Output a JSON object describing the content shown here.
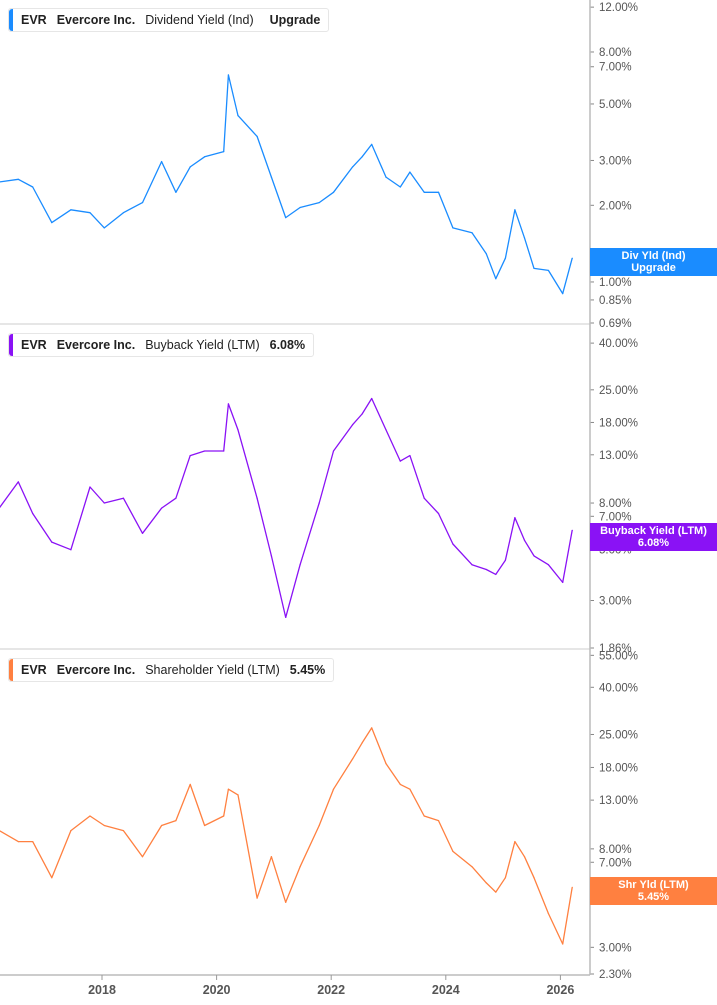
{
  "chart_data": [
    {
      "type": "line",
      "ticker": "EVR",
      "company": "Evercore Inc.",
      "metric": "Dividend Yield (Ind)",
      "value_label": "Upgrade",
      "tag_lines": [
        "Div Yld (Ind)",
        "Upgrade"
      ],
      "color": "#1a8cff",
      "yscale": "log",
      "ylim": [
        0.69,
        12.8
      ],
      "yticks": [
        "12.00%",
        "8.00%",
        "7.00%",
        "5.00%",
        "3.00%",
        "2.00%",
        "1.00%",
        "0.85%",
        "0.69%"
      ],
      "x": [
        "2016-03",
        "2016-07",
        "2016-10",
        "2017-02",
        "2017-06",
        "2017-10",
        "2018-01",
        "2018-05",
        "2018-09",
        "2019-01",
        "2019-04",
        "2019-07",
        "2019-10",
        "2020-02",
        "2020-03",
        "2020-05",
        "2020-09",
        "2020-12",
        "2021-03",
        "2021-06",
        "2021-10",
        "2022-01",
        "2022-05",
        "2022-07",
        "2022-09",
        "2022-12",
        "2023-03",
        "2023-05",
        "2023-08",
        "2023-11",
        "2024-02",
        "2024-06",
        "2024-09",
        "2024-11",
        "2025-01",
        "2025-03",
        "2025-05",
        "2025-07",
        "2025-10",
        "2026-01",
        "2026-03"
      ],
      "values": [
        2.47,
        2.53,
        2.36,
        1.71,
        1.92,
        1.87,
        1.63,
        1.87,
        2.05,
        2.97,
        2.25,
        2.83,
        3.1,
        3.25,
        6.5,
        4.5,
        3.73,
        2.58,
        1.79,
        1.96,
        2.05,
        2.25,
        2.83,
        3.1,
        3.47,
        2.58,
        2.36,
        2.7,
        2.25,
        2.25,
        1.63,
        1.56,
        1.29,
        1.03,
        1.24,
        1.92,
        1.49,
        1.13,
        1.11,
        0.9,
        1.24
      ]
    },
    {
      "type": "line",
      "ticker": "EVR",
      "company": "Evercore Inc.",
      "metric": "Buyback Yield (LTM)",
      "value_label": "6.08%",
      "tag_lines": [
        "Buyback Yield (LTM)",
        "6.08%"
      ],
      "color": "#8a12f5",
      "yscale": "log",
      "ylim": [
        1.86,
        48
      ],
      "yticks": [
        "40.00%",
        "25.00%",
        "18.00%",
        "13.00%",
        "8.00%",
        "7.00%",
        "5.00%",
        "3.00%",
        "1.86%"
      ],
      "x": [
        "2016-03",
        "2016-07",
        "2016-10",
        "2017-02",
        "2017-06",
        "2017-10",
        "2018-01",
        "2018-05",
        "2018-09",
        "2019-01",
        "2019-04",
        "2019-07",
        "2019-10",
        "2020-02",
        "2020-03",
        "2020-05",
        "2020-09",
        "2020-12",
        "2021-03",
        "2021-06",
        "2021-10",
        "2022-01",
        "2022-05",
        "2022-07",
        "2022-09",
        "2022-12",
        "2023-03",
        "2023-05",
        "2023-08",
        "2023-11",
        "2024-02",
        "2024-06",
        "2024-09",
        "2024-11",
        "2025-01",
        "2025-03",
        "2025-05",
        "2025-07",
        "2025-10",
        "2026-01",
        "2026-03"
      ],
      "values": [
        7.6,
        9.9,
        7.2,
        5.4,
        5.0,
        9.4,
        8.0,
        8.4,
        5.9,
        7.6,
        8.4,
        12.9,
        13.5,
        13.5,
        21.7,
        16.7,
        8.4,
        4.7,
        2.53,
        4.3,
        8.0,
        13.5,
        17.6,
        19.6,
        22.9,
        16.7,
        12.2,
        12.9,
        8.4,
        7.2,
        5.3,
        4.3,
        4.1,
        3.9,
        4.5,
        6.9,
        5.5,
        4.7,
        4.3,
        3.6,
        6.08
      ]
    },
    {
      "type": "line",
      "ticker": "EVR",
      "company": "Evercore Inc.",
      "metric": "Shareholder Yield (LTM)",
      "value_label": "5.45%",
      "tag_lines": [
        "Shr Yld (LTM)",
        "5.45%"
      ],
      "color": "#ff8040",
      "yscale": "log",
      "ylim": [
        2.3,
        58
      ],
      "yticks": [
        "55.00%",
        "40.00%",
        "25.00%",
        "18.00%",
        "13.00%",
        "8.00%",
        "7.00%",
        "5.00%",
        "3.00%",
        "2.30%"
      ],
      "xticks": [
        "2018",
        "2020",
        "2022",
        "2024",
        "2026"
      ],
      "x": [
        "2016-03",
        "2016-07",
        "2016-10",
        "2017-02",
        "2017-06",
        "2017-10",
        "2018-01",
        "2018-05",
        "2018-09",
        "2019-01",
        "2019-04",
        "2019-07",
        "2019-10",
        "2020-02",
        "2020-03",
        "2020-05",
        "2020-09",
        "2020-12",
        "2021-03",
        "2021-06",
        "2021-10",
        "2022-01",
        "2022-05",
        "2022-07",
        "2022-09",
        "2022-12",
        "2023-03",
        "2023-05",
        "2023-08",
        "2023-11",
        "2024-02",
        "2024-06",
        "2024-09",
        "2024-11",
        "2025-01",
        "2025-03",
        "2025-05",
        "2025-07",
        "2025-10",
        "2026-01",
        "2026-03"
      ],
      "values": [
        9.6,
        8.6,
        8.6,
        6.0,
        9.6,
        11.1,
        10.1,
        9.6,
        7.4,
        10.1,
        10.6,
        15.2,
        10.1,
        11.1,
        14.5,
        13.7,
        4.9,
        7.4,
        4.7,
        6.7,
        10.1,
        14.5,
        19.6,
        23.0,
        26.7,
        18.7,
        15.2,
        14.5,
        11.1,
        10.6,
        7.8,
        6.7,
        5.7,
        5.2,
        6.0,
        8.6,
        7.4,
        6.0,
        4.2,
        3.1,
        5.45
      ]
    }
  ]
}
